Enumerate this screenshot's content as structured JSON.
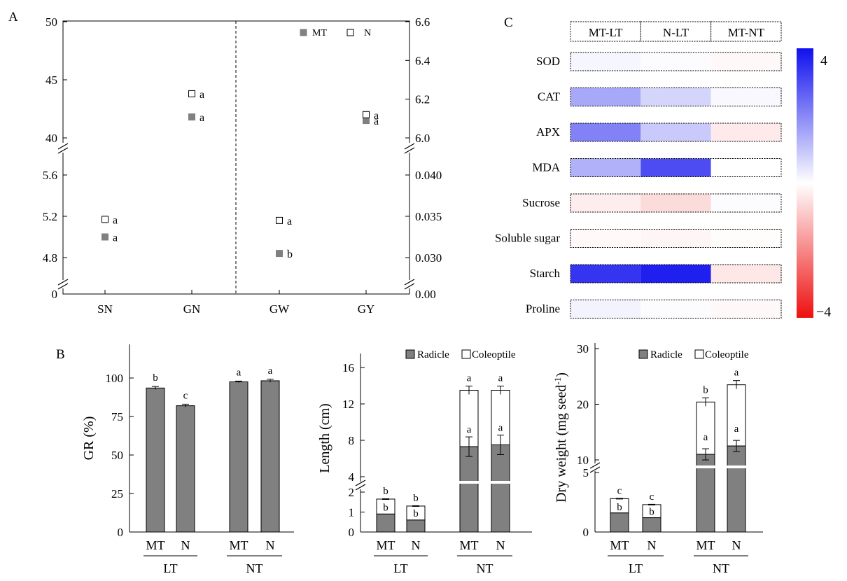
{
  "colors": {
    "filled": "#808080",
    "open": "#ffffff",
    "stroke": "#000000",
    "heat_pos": "#1010ee",
    "heat_neg": "#ee1010"
  },
  "chart_data": [
    {
      "panel": "A",
      "type": "scatter",
      "legend": [
        "MT",
        "N"
      ],
      "x": [
        "SN",
        "GN",
        "GW",
        "GY"
      ],
      "left_axis": {
        "upper_ticks": [
          "40",
          "45",
          "50"
        ],
        "lower_ticks": [
          "4.8",
          "5.2",
          "5.6"
        ],
        "zero": "0"
      },
      "right_axis": {
        "upper_ticks": [
          "6.0",
          "6.2",
          "6.4",
          "6.6"
        ],
        "lower_ticks": [
          "0.030",
          "0.035",
          "0.040"
        ],
        "zero": "0.00"
      },
      "series": [
        {
          "name": "MT",
          "points": [
            {
              "x": "SN",
              "y": 5.0,
              "axis": "left",
              "label": "a"
            },
            {
              "x": "GN",
              "y": 41.8,
              "axis": "left",
              "label": "a"
            },
            {
              "x": "GW",
              "y": 0.0305,
              "axis": "right",
              "label": "b"
            },
            {
              "x": "GY",
              "y": 6.09,
              "axis": "right",
              "label": "a"
            }
          ]
        },
        {
          "name": "N",
          "points": [
            {
              "x": "SN",
              "y": 5.17,
              "axis": "left",
              "label": "a"
            },
            {
              "x": "GN",
              "y": 43.8,
              "axis": "left",
              "label": "a"
            },
            {
              "x": "GW",
              "y": 0.0345,
              "axis": "right",
              "label": "a"
            },
            {
              "x": "GY",
              "y": 6.12,
              "axis": "right",
              "label": "a"
            }
          ]
        }
      ]
    },
    {
      "panel": "B1",
      "type": "bar",
      "ylabel": "GR (%)",
      "ylim": [
        0,
        120
      ],
      "yticks": [
        "0",
        "25",
        "50",
        "75",
        "100"
      ],
      "groups": [
        "LT",
        "NT"
      ],
      "categories": [
        "MT",
        "N",
        "MT",
        "N"
      ],
      "values": [
        93.5,
        82.0,
        97.5,
        98.2
      ],
      "errors": [
        1.0,
        1.0,
        0.5,
        1.0
      ],
      "labels": [
        "b",
        "c",
        "a",
        "a"
      ]
    },
    {
      "panel": "B2",
      "type": "bar",
      "stacked": true,
      "ylabel": "Length (cm)",
      "legend": [
        "Radicle",
        "Coleoptile"
      ],
      "yticks": [
        "0",
        "1",
        "2",
        "4",
        "8",
        "12",
        "16"
      ],
      "groups": [
        "LT",
        "NT"
      ],
      "categories": [
        "MT",
        "N",
        "MT",
        "N"
      ],
      "series": [
        {
          "name": "Radicle",
          "values": [
            0.9,
            0.6,
            7.3,
            7.5
          ],
          "labels": [
            "b",
            "b",
            "a",
            "a"
          ]
        },
        {
          "name": "Coleoptile",
          "values": [
            0.75,
            0.7,
            6.2,
            6.0
          ],
          "labels": [
            "b",
            "b",
            "a",
            "a"
          ]
        }
      ]
    },
    {
      "panel": "B3",
      "type": "bar",
      "stacked": true,
      "ylabel": "Dry weight (mg seed",
      "ylabel_sup": "-1",
      "ylabel_end": ")",
      "legend": [
        "Radicle",
        "Coleoptile"
      ],
      "yticks": [
        "0",
        "5",
        "10",
        "20",
        "30"
      ],
      "groups": [
        "LT",
        "NT"
      ],
      "categories": [
        "MT",
        "N",
        "MT",
        "N"
      ],
      "series": [
        {
          "name": "Radicle",
          "values": [
            1.6,
            1.2,
            11.0,
            12.5
          ],
          "labels": [
            "b",
            "b",
            "a",
            "a"
          ]
        },
        {
          "name": "Coleoptile",
          "values": [
            1.2,
            1.1,
            9.4,
            11.0
          ],
          "labels": [
            "c",
            "c",
            "b",
            "a"
          ]
        }
      ]
    },
    {
      "panel": "C",
      "type": "heatmap",
      "columns": [
        "MT-LT",
        "N-LT",
        "MT-NT"
      ],
      "rows": [
        "SOD",
        "CAT",
        "APX",
        "MDA",
        "Sucrose",
        "Soluble sugar",
        "Starch",
        "Proline"
      ],
      "values": [
        [
          0.15,
          0.05,
          -0.12
        ],
        [
          1.45,
          0.7,
          0.12
        ],
        [
          2.1,
          0.9,
          -0.35
        ],
        [
          1.3,
          3.0,
          0.0
        ],
        [
          -0.3,
          -0.6,
          0.05
        ],
        [
          -0.1,
          -0.15,
          -0.05
        ],
        [
          3.4,
          3.75,
          -0.4
        ],
        [
          0.2,
          0.05,
          -0.12
        ]
      ],
      "scale": {
        "max": 4,
        "min": -4,
        "max_label": "4",
        "min_label": "−4"
      }
    }
  ],
  "panel_labels": {
    "a": "A",
    "b": "B",
    "c": "C"
  }
}
